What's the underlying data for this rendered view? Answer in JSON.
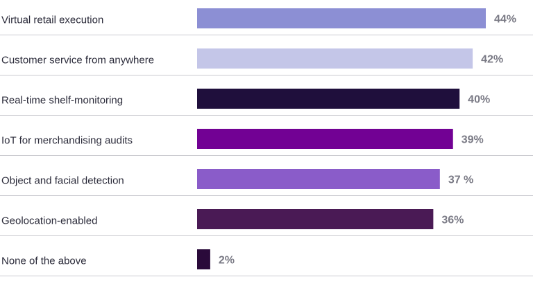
{
  "chart_data": {
    "type": "bar",
    "orientation": "horizontal",
    "categories": [
      "Virtual retail execution",
      "Customer service from anywhere",
      "Real-time shelf-monitoring",
      "IoT for merchandising audits",
      "Object and facial detection",
      "Geolocation-enabled",
      "None of the above"
    ],
    "values": [
      44,
      42,
      40,
      39,
      37,
      36,
      2
    ],
    "value_labels": [
      "44%",
      "42%",
      "40%",
      "39%",
      "37 %",
      "36%",
      "2%"
    ],
    "colors": [
      "#8c8fd4",
      "#c4c6e8",
      "#1f0f3c",
      "#720194",
      "#8a5cc9",
      "#4a1a55",
      "#2a0a3a"
    ],
    "title": "",
    "xlabel": "",
    "ylabel": "",
    "xlim": [
      0,
      44
    ],
    "grid": false,
    "legend": "none"
  }
}
